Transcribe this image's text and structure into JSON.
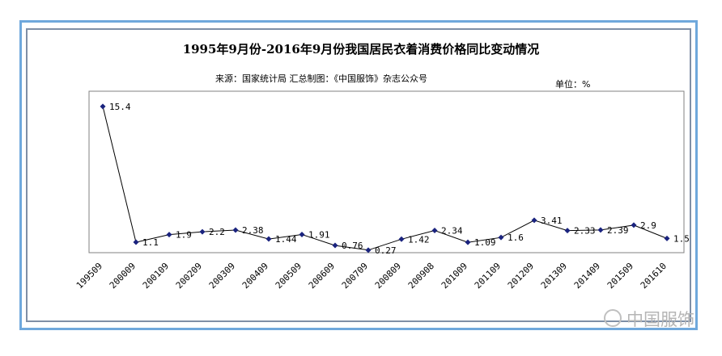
{
  "chart_data": {
    "type": "line",
    "title": "1995年9月份-2016年9月份我国居民衣着消费价格同比变动情况",
    "source": "来源：国家统计局   汇总制图：《中国服饰》杂志公众号",
    "unit": "单位：%",
    "categories": [
      "199509",
      "200009",
      "200109",
      "200209",
      "200309",
      "200409",
      "200509",
      "200609",
      "200709",
      "200809",
      "200908",
      "201009",
      "201109",
      "201209",
      "201309",
      "201409",
      "201509",
      "201610"
    ],
    "values": [
      15.4,
      1.1,
      1.9,
      2.2,
      2.38,
      1.44,
      1.91,
      0.76,
      0.27,
      1.42,
      2.34,
      1.09,
      1.6,
      3.41,
      2.33,
      2.39,
      2.9,
      1.5
    ],
    "value_labels": [
      "15.4",
      "1.1",
      "1.9",
      "2.2",
      "2.38",
      "1.44",
      "1.91",
      "0.76",
      "0.27",
      "1.42",
      "2.34",
      "1.09",
      "1.6",
      "3.41",
      "2.33",
      "2.39",
      "2.9",
      "1.5"
    ],
    "ylim": [
      0,
      17
    ],
    "grid": false,
    "line_color": "#000000",
    "marker_color": "#1a237e"
  },
  "watermark": "中国服饰"
}
